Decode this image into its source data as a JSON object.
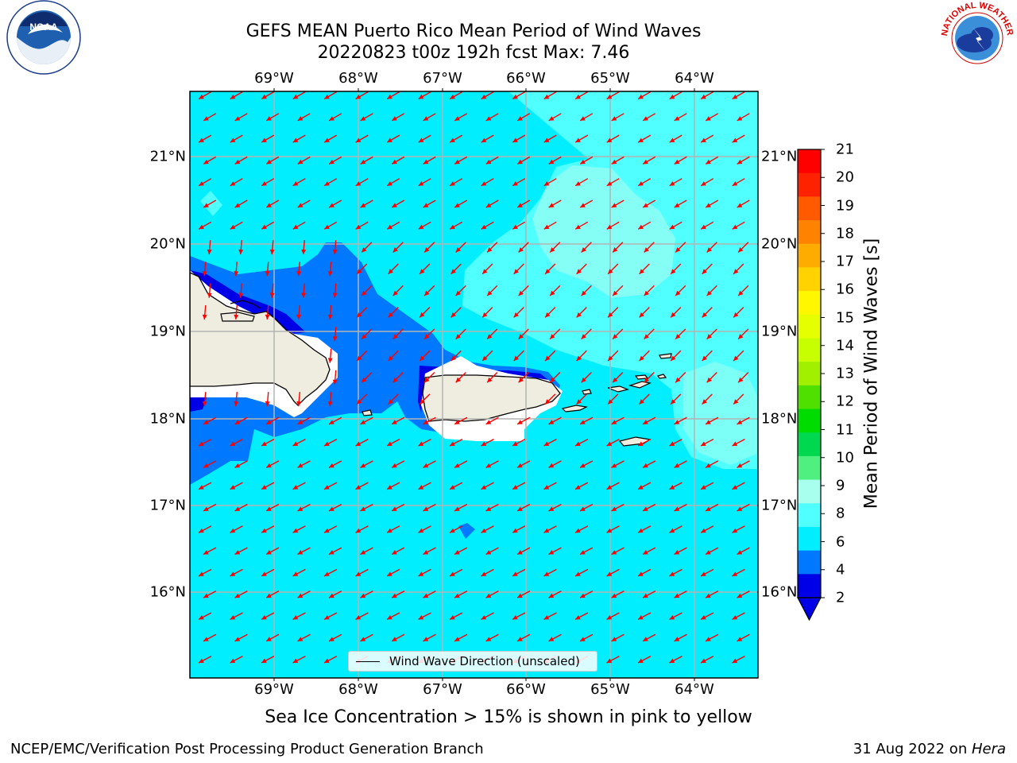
{
  "title_line1": "GEFS MEAN Puerto Rico Mean Period of Wind Waves",
  "title_line2": "20220823 t00z 192h fcst   Max: 7.46",
  "lon_labels": [
    "69°W",
    "68°W",
    "67°W",
    "66°W",
    "65°W",
    "64°W"
  ],
  "lat_labels": [
    "21°N",
    "20°N",
    "19°N",
    "18°N",
    "17°N",
    "16°N"
  ],
  "colorbar": {
    "title": "Mean Period of Wind Waves [s]",
    "ticks": [
      "21",
      "20",
      "19",
      "18",
      "17",
      "16",
      "15",
      "14",
      "13",
      "12",
      "11",
      "10",
      "9",
      "8",
      "6",
      "4",
      "2"
    ],
    "colors": [
      "#ff0000",
      "#ff2200",
      "#ff5a00",
      "#ff8200",
      "#ffac00",
      "#ffd200",
      "#fff700",
      "#e6ff00",
      "#c8ff00",
      "#a0f000",
      "#50e000",
      "#00dc00",
      "#00d850",
      "#50f080",
      "#a8ffee",
      "#50ffff",
      "#00eeff",
      "#0078ff",
      "#0000e6"
    ],
    "extend_color": "#0000e6"
  },
  "legend_text": "Wind Wave Direction (unscaled)",
  "subtitle": "Sea Ice Concentration > 15% is shown in pink to yellow",
  "footer_left": "NCEP/EMC/Verification Post Processing Product Generation Branch",
  "footer_date": "31 Aug 2022 on ",
  "footer_host": "Hera",
  "logos": {
    "left": "noaa-logo",
    "right": "nws-logo",
    "nws_text": "NATIONAL WEATHER SERVICE",
    "noaa_text": "NOAA"
  },
  "colors": {
    "sea": "#00eeff",
    "sea_light": "#50ffff",
    "sea_pale": "#a8ffee",
    "shallow": "#0078ff",
    "deep": "#0000e6",
    "land": "#efede0",
    "arrow": "#ff0000"
  }
}
